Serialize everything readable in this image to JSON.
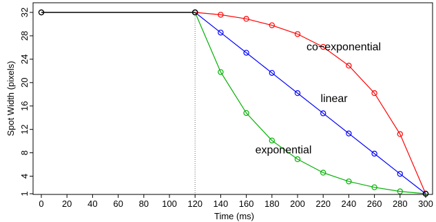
{
  "chart_data": {
    "type": "line",
    "title": "",
    "xlabel": "Time (ms)",
    "ylabel": "Spot Width (pixels)",
    "xlim": [
      0,
      305
    ],
    "ylim": [
      1,
      33
    ],
    "x_ticks": [
      0,
      20,
      40,
      60,
      80,
      100,
      120,
      140,
      160,
      180,
      200,
      220,
      240,
      260,
      280,
      300
    ],
    "y_ticks": [
      1,
      4,
      8,
      12,
      16,
      20,
      24,
      28,
      32
    ],
    "x_tick_labels": [
      "0",
      "20",
      "40",
      "60",
      "80",
      "100",
      "120",
      "140",
      "160",
      "180",
      "200",
      "220",
      "240",
      "260",
      "280",
      "300"
    ],
    "y_tick_labels": [
      "1",
      "4",
      "8",
      "12",
      "16",
      "20",
      "24",
      "28",
      "32"
    ],
    "grid": false,
    "vertical_marker_x": 120,
    "series": [
      {
        "name": "co−exponential",
        "color": "#ff0000",
        "x": [
          120,
          140,
          160,
          180,
          200,
          220,
          240,
          260,
          280,
          300
        ],
        "y": [
          32,
          31.6,
          30.9,
          29.8,
          28.3,
          26.1,
          22.9,
          18.2,
          11.2,
          1
        ],
        "label_at": [
          207,
          25.5
        ],
        "extend_to": [
          305,
          0
        ]
      },
      {
        "name": "linear",
        "color": "#0000ff",
        "x": [
          120,
          140,
          160,
          180,
          200,
          220,
          240,
          260,
          280,
          300
        ],
        "y": [
          32,
          28.55,
          25.1,
          21.65,
          18.2,
          14.75,
          11.3,
          7.85,
          4.4,
          1
        ],
        "label_at": [
          218,
          16.7
        ],
        "extend_to": [
          305,
          0
        ]
      },
      {
        "name": "exponential",
        "color": "#00b000",
        "x": [
          120,
          140,
          160,
          180,
          200,
          220,
          240,
          260,
          280,
          300
        ],
        "y": [
          32,
          21.8,
          14.8,
          10.1,
          6.9,
          4.6,
          3.1,
          2.1,
          1.4,
          1
        ],
        "label_at": [
          167,
          7.9
        ],
        "extend_to": [
          305,
          0
        ]
      },
      {
        "name": "",
        "color": "#000000",
        "x": [
          0,
          120
        ],
        "y": [
          32,
          32
        ]
      }
    ]
  }
}
